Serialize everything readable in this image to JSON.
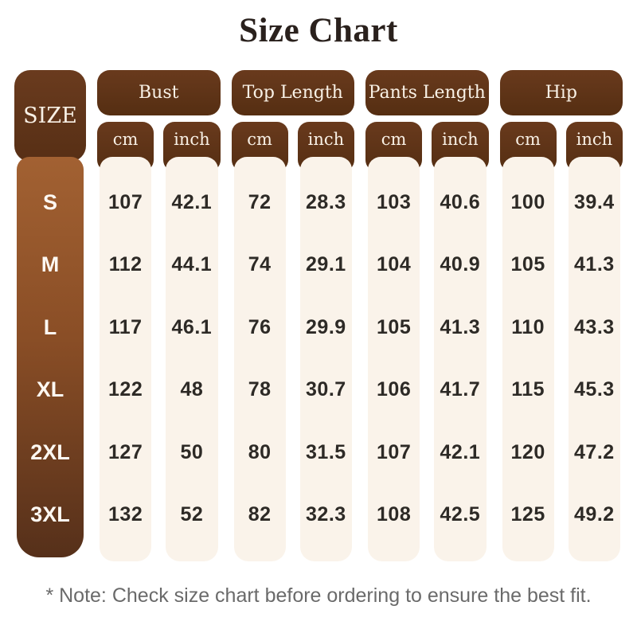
{
  "title": "Size Chart",
  "note": "* Note: Check size chart before ordering to ensure the best fit.",
  "colors": {
    "header_brown_top": "#693a1d",
    "header_brown_bottom": "#552e12",
    "size_gradient_top": "#a26132",
    "size_gradient_bottom": "#56301a",
    "panel_cream": "#faf3ea",
    "header_text": "#f9f1e6",
    "value_text": "#2d2a26",
    "title_text": "#2a211d",
    "note_gray": "#6a6a6a",
    "background": "#ffffff"
  },
  "chart_data": {
    "type": "table",
    "title": "Size Chart",
    "size_header": "SIZE",
    "groups": [
      {
        "label": "Bust",
        "units": [
          "cm",
          "inch"
        ]
      },
      {
        "label": "Top Length",
        "units": [
          "cm",
          "inch"
        ]
      },
      {
        "label": "Pants Length",
        "units": [
          "cm",
          "inch"
        ]
      },
      {
        "label": "Hip",
        "units": [
          "cm",
          "inch"
        ]
      }
    ],
    "column_order": [
      "bust_cm",
      "bust_inch",
      "top_length_cm",
      "top_length_inch",
      "pants_length_cm",
      "pants_length_inch",
      "hip_cm",
      "hip_inch"
    ],
    "rows": [
      {
        "size": "S",
        "values": [
          "107",
          "42.1",
          "72",
          "28.3",
          "103",
          "40.6",
          "100",
          "39.4"
        ]
      },
      {
        "size": "M",
        "values": [
          "112",
          "44.1",
          "74",
          "29.1",
          "104",
          "40.9",
          "105",
          "41.3"
        ]
      },
      {
        "size": "L",
        "values": [
          "117",
          "46.1",
          "76",
          "29.9",
          "105",
          "41.3",
          "110",
          "43.3"
        ]
      },
      {
        "size": "XL",
        "values": [
          "122",
          "48",
          "78",
          "30.7",
          "106",
          "41.7",
          "115",
          "45.3"
        ]
      },
      {
        "size": "2XL",
        "values": [
          "127",
          "50",
          "80",
          "31.5",
          "107",
          "42.1",
          "120",
          "47.2"
        ]
      },
      {
        "size": "3XL",
        "values": [
          "132",
          "52",
          "82",
          "32.3",
          "108",
          "42.5",
          "125",
          "49.2"
        ]
      }
    ]
  }
}
